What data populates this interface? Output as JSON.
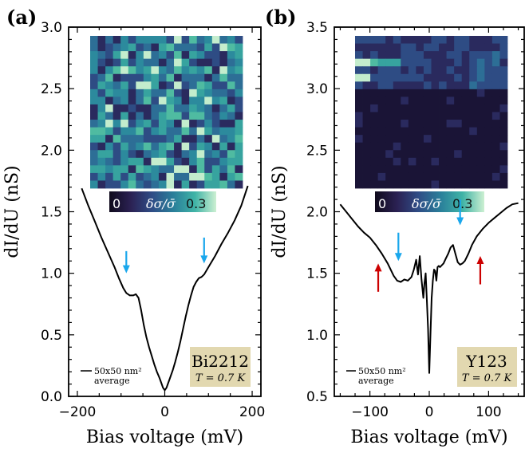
{
  "panels": [
    {
      "id": "a",
      "panel_label": "(a)",
      "sample_label": "Bi2212",
      "temperature_label": "T = 0.7 K",
      "legend_label_line1": "50x50 nm²",
      "legend_label_line2": "average",
      "colorbar": {
        "min_label": "0",
        "max_label": "0.3",
        "label": "δσ/σ̄"
      },
      "colors": {
        "box": "#e2d8b0",
        "arrow_blue": "#1aa7ec",
        "arrow_red": "#cc0000"
      }
    },
    {
      "id": "b",
      "panel_label": "(b)",
      "sample_label": "Y123",
      "temperature_label": "T = 0.7 K",
      "legend_label_line1": "50x50 nm²",
      "legend_label_line2": "average",
      "colorbar": {
        "min_label": "0",
        "max_label": "0.3",
        "label": "δσ/σ̄"
      },
      "colors": {
        "box": "#e2d8b0",
        "arrow_blue": "#1aa7ec",
        "arrow_red": "#cc0000"
      }
    }
  ],
  "chart_data": [
    {
      "type": "line",
      "xlabel": "Bias voltage (mV)",
      "ylabel": "dI/dU (nS)",
      "xlim": [
        -220,
        220
      ],
      "ylim": [
        0.0,
        3.0
      ],
      "xticks": [
        -200,
        0,
        200
      ],
      "yticks": [
        0.0,
        0.5,
        1.0,
        1.5,
        2.0,
        2.5,
        3.0
      ],
      "series": [
        {
          "x": [
            -190,
            -175,
            -160,
            -145,
            -130,
            -115,
            -105,
            -95,
            -88,
            -80,
            -72,
            -66,
            -60,
            -54,
            -48,
            -42,
            -36,
            -30,
            -24,
            -18,
            -12,
            -8,
            -4,
            0,
            4,
            8,
            12,
            18,
            24,
            30,
            36,
            42,
            48,
            54,
            60,
            66,
            72,
            78,
            84,
            90,
            100,
            115,
            130,
            145,
            160,
            175,
            190
          ],
          "y": [
            1.69,
            1.55,
            1.42,
            1.29,
            1.17,
            1.05,
            0.96,
            0.88,
            0.84,
            0.82,
            0.82,
            0.83,
            0.8,
            0.7,
            0.58,
            0.48,
            0.4,
            0.33,
            0.26,
            0.2,
            0.15,
            0.11,
            0.07,
            0.05,
            0.07,
            0.11,
            0.15,
            0.21,
            0.28,
            0.36,
            0.45,
            0.55,
            0.65,
            0.74,
            0.82,
            0.89,
            0.93,
            0.96,
            0.97,
            0.99,
            1.05,
            1.14,
            1.24,
            1.33,
            1.43,
            1.55,
            1.71
          ]
        }
      ],
      "annotations": [
        {
          "kind": "blue-arrow",
          "x": -88,
          "y_tip": 1.0,
          "y_tail": 1.18
        },
        {
          "kind": "blue-arrow",
          "x": 90,
          "y_tip": 1.08,
          "y_tail": 1.29
        }
      ]
    },
    {
      "type": "line",
      "xlabel": "Bias voltage (mV)",
      "ylabel": "dI/dU (nS)",
      "xlim": [
        -160,
        160
      ],
      "ylim": [
        0.5,
        3.5
      ],
      "xticks": [
        -100,
        0,
        100
      ],
      "yticks": [
        0.5,
        1.0,
        1.5,
        2.0,
        2.5,
        3.0,
        3.5
      ],
      "series": [
        {
          "x": [
            -150,
            -140,
            -130,
            -120,
            -110,
            -100,
            -90,
            -80,
            -70,
            -60,
            -54,
            -48,
            -42,
            -36,
            -30,
            -26,
            -22,
            -19,
            -16,
            -13,
            -10,
            -8,
            -6,
            -4,
            -2,
            0,
            2,
            4,
            6,
            8,
            10,
            12,
            14,
            16,
            18,
            20,
            24,
            28,
            32,
            36,
            40,
            44,
            48,
            52,
            56,
            60,
            66,
            72,
            80,
            90,
            100,
            110,
            120,
            130,
            140,
            150
          ],
          "y": [
            2.06,
            2.0,
            1.94,
            1.88,
            1.83,
            1.79,
            1.73,
            1.66,
            1.58,
            1.48,
            1.44,
            1.43,
            1.45,
            1.44,
            1.47,
            1.53,
            1.61,
            1.49,
            1.64,
            1.45,
            1.3,
            1.42,
            1.5,
            1.28,
            1.05,
            0.69,
            1.0,
            1.3,
            1.44,
            1.53,
            1.52,
            1.44,
            1.55,
            1.56,
            1.55,
            1.56,
            1.58,
            1.62,
            1.66,
            1.71,
            1.73,
            1.66,
            1.59,
            1.57,
            1.58,
            1.6,
            1.66,
            1.73,
            1.8,
            1.86,
            1.91,
            1.95,
            1.99,
            2.03,
            2.06,
            2.07
          ]
        }
      ],
      "annotations": [
        {
          "kind": "blue-arrow",
          "x": -52,
          "y_tip": 1.6,
          "y_tail": 1.83
        },
        {
          "kind": "blue-arrow",
          "x": 52,
          "y_tip": 1.89,
          "y_tail": 2.1
        },
        {
          "kind": "red-arrow",
          "x": -86,
          "y_tip": 1.58,
          "y_tail": 1.35
        },
        {
          "kind": "red-arrow",
          "x": 86,
          "y_tip": 1.64,
          "y_tail": 1.41
        }
      ]
    }
  ]
}
